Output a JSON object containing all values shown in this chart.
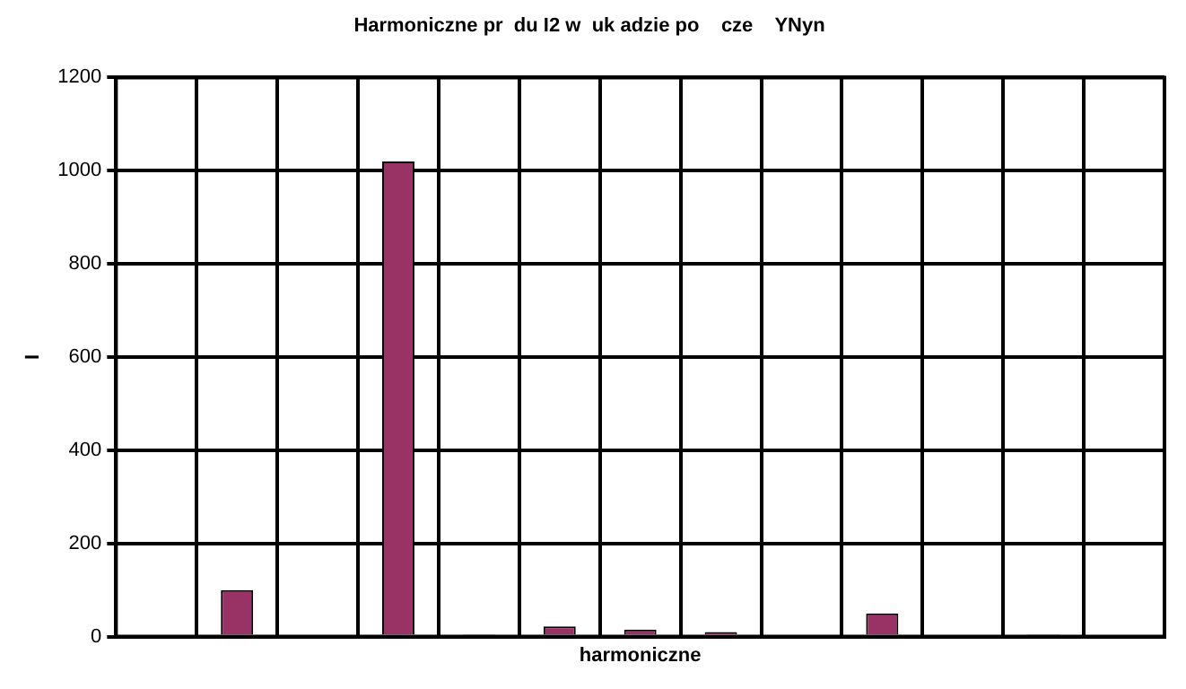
{
  "chart_data": {
    "type": "bar",
    "title": "Harmoniczne pr  du I2 w  uk adzie po    cze    YNyn",
    "xlabel": "harmoniczne",
    "ylabel": "I",
    "categories": [
      null,
      null,
      null,
      null,
      null,
      null,
      null,
      null,
      null,
      null,
      null,
      null,
      null
    ],
    "values": [
      0,
      100,
      0,
      1020,
      5,
      22,
      15,
      10,
      0,
      50,
      0,
      5,
      0
    ],
    "color": "#993366",
    "ylim": [
      0,
      1200
    ],
    "yticks": [
      0,
      200,
      400,
      600,
      800,
      1000,
      1200
    ],
    "grid": true,
    "tick_labels": "y",
    "legend": false
  }
}
